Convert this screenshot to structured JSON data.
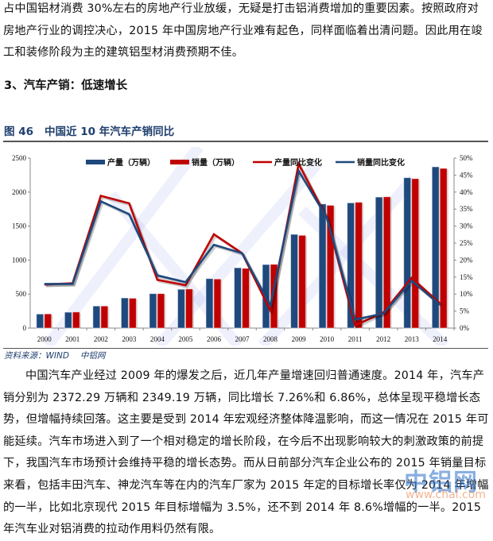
{
  "paragraph1": "占中国铝材消费 30%左右的房地产行业放缓，无疑是打击铝消费增加的重要因素。按照政府对房地产行业的调控决心，2015 年中国房地产行业难有起色，同样面临着出清问题。因此用在竣工和装修阶段为主的建筑铝型材消费预期不佳。",
  "section_heading": "3、汽车产销：低速增长",
  "figure": {
    "label": "图 46",
    "title": "中国近 10 年汽车产销同比"
  },
  "source": {
    "prefix": "资料来源：WIND",
    "org": "中铝网"
  },
  "paragraph2": "中国汽车产业经过 2009 年的爆发之后，近几年产量增速回归普通速度。2014 年，汽车产销分别为 2372.29 万辆和 2349.19 万辆，同比增长 7.26%和 6.86%，总体呈现平稳增长态势，但增幅持续回落。这主要是受到 2014 年宏观经济整体降温影响，而这一情况在 2015 年可能延续。汽车市场进入到了一个相对稳定的增长阶段，在今后不出现影响较大的刺激政策的前提下，我国汽车市场预计会维持平稳的增长态势。而从日前部分汽车企业公布的 2015 年销量目标来看，包括丰田汽车、神龙汽车等在内的汽车厂家为 2015 年定的目标增长率仅为 2014 年增幅的一半，比如北京现代 2015 年目标增幅为 3.5%，还不到 2014 年 8.6%增幅的一半。2015 年汽车业对铝消费的拉动作用料仍然有限。",
  "watermark": {
    "logo": "中铝网",
    "url": "www.chal.com"
  },
  "colors": {
    "production": "#1f497d",
    "sales": "#c00000",
    "title": "#1f3f6e"
  },
  "chart_data": {
    "type": "bar+line",
    "title": "中国近 10 年汽车产销同比",
    "categories": [
      "2000",
      "2001",
      "2002",
      "2003",
      "2004",
      "2005",
      "2006",
      "2007",
      "2008",
      "2009",
      "2010",
      "2011",
      "2012",
      "2013",
      "2014"
    ],
    "series": [
      {
        "name": "产量（万辆）",
        "type": "bar",
        "axis": "left",
        "color": "#1f497d",
        "values": [
          207,
          234,
          325,
          444,
          507,
          571,
          728,
          888,
          935,
          1379,
          1826,
          1842,
          1927,
          2212,
          2372
        ]
      },
      {
        "name": "销量（万辆）",
        "type": "bar",
        "axis": "left",
        "color": "#c00000",
        "values": [
          209,
          237,
          325,
          439,
          507,
          576,
          722,
          879,
          938,
          1364,
          1806,
          1851,
          1931,
          2198,
          2349
        ]
      },
      {
        "name": "产量同比变化",
        "type": "line",
        "axis": "right",
        "color": "#c00000",
        "values": [
          12.8,
          13.2,
          38.9,
          36.7,
          14.2,
          12.6,
          27.6,
          22.0,
          5.2,
          48.3,
          32.4,
          0.8,
          4.6,
          14.8,
          7.3
        ]
      },
      {
        "name": "销量同比变化",
        "type": "line",
        "axis": "right",
        "color": "#1f497d",
        "values": [
          13.0,
          13.0,
          37.3,
          33.5,
          15.5,
          13.5,
          24.5,
          22.0,
          6.7,
          46.2,
          32.4,
          2.5,
          4.3,
          13.9,
          6.9
        ]
      }
    ],
    "left_axis": {
      "min": 0,
      "max": 2500,
      "ticks": [
        "0",
        "500",
        "1000",
        "1500",
        "2000",
        "2500"
      ]
    },
    "right_axis": {
      "min": 0,
      "max": 50,
      "ticks": [
        "0%",
        "5%",
        "10%",
        "15%",
        "20%",
        "25%",
        "30%",
        "35%",
        "40%",
        "45%",
        "50%"
      ]
    },
    "legend_position": "top",
    "grid": false
  }
}
